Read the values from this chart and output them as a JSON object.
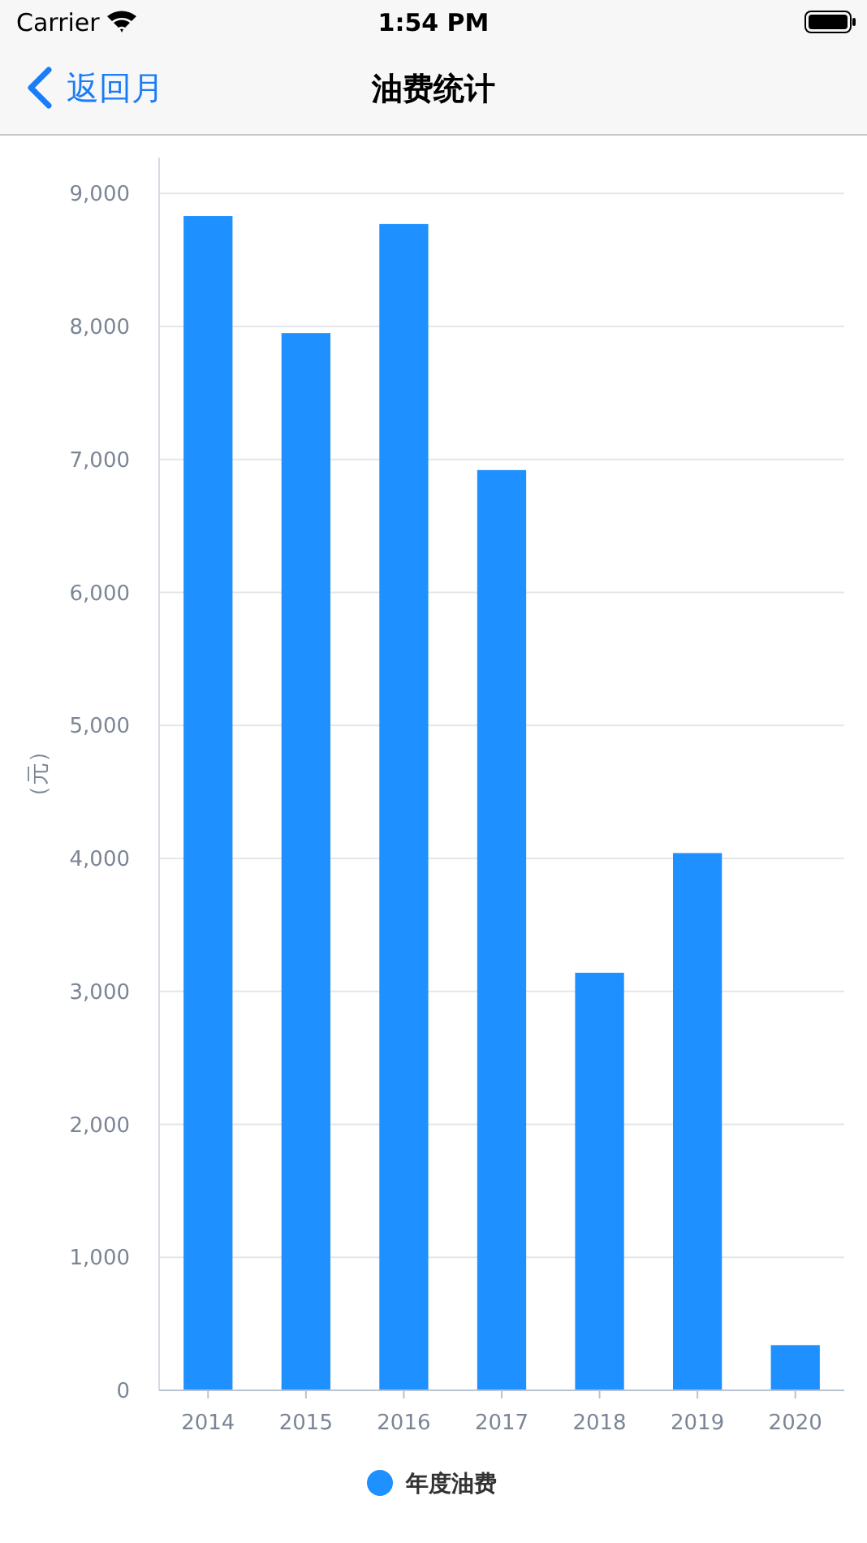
{
  "chart_data": {
    "type": "bar",
    "title": "油费统计",
    "ylabel": "（元）",
    "annotations": [
      "Carrier",
      "1:54 PM",
      "返回月"
    ],
    "categories": [
      "2014",
      "2015",
      "2016",
      "2017",
      "2018",
      "2019",
      "2020"
    ],
    "series": [
      {
        "name": "年度油费",
        "color": "#1e90ff",
        "values": [
          8830,
          7950,
          8770,
          6920,
          3140,
          4040,
          340
        ]
      }
    ],
    "ylim": [
      0,
      9270
    ],
    "yticks": [
      0,
      {
        "value": 1000,
        "label": "1,000"
      },
      {
        "value": 2000,
        "label": "2,000"
      },
      {
        "value": 3000,
        "label": "3,000"
      },
      {
        "value": 4000,
        "label": "4,000"
      },
      {
        "value": 5000,
        "label": "5,000"
      },
      {
        "value": 6000,
        "label": "6,000"
      },
      {
        "value": 7000,
        "label": "7,000"
      },
      {
        "value": 8000,
        "label": "8,000"
      },
      {
        "value": 9000,
        "label": "9,000"
      }
    ],
    "grid": "y",
    "legend": "bottom"
  }
}
